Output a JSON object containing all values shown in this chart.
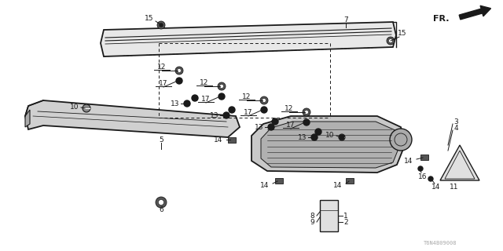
{
  "bg_color": "#ffffff",
  "line_color": "#1a1a1a",
  "fig_width": 6.4,
  "fig_height": 3.2,
  "dpi": 100,
  "watermark": "T6N4B09008",
  "fr_label": "FR."
}
